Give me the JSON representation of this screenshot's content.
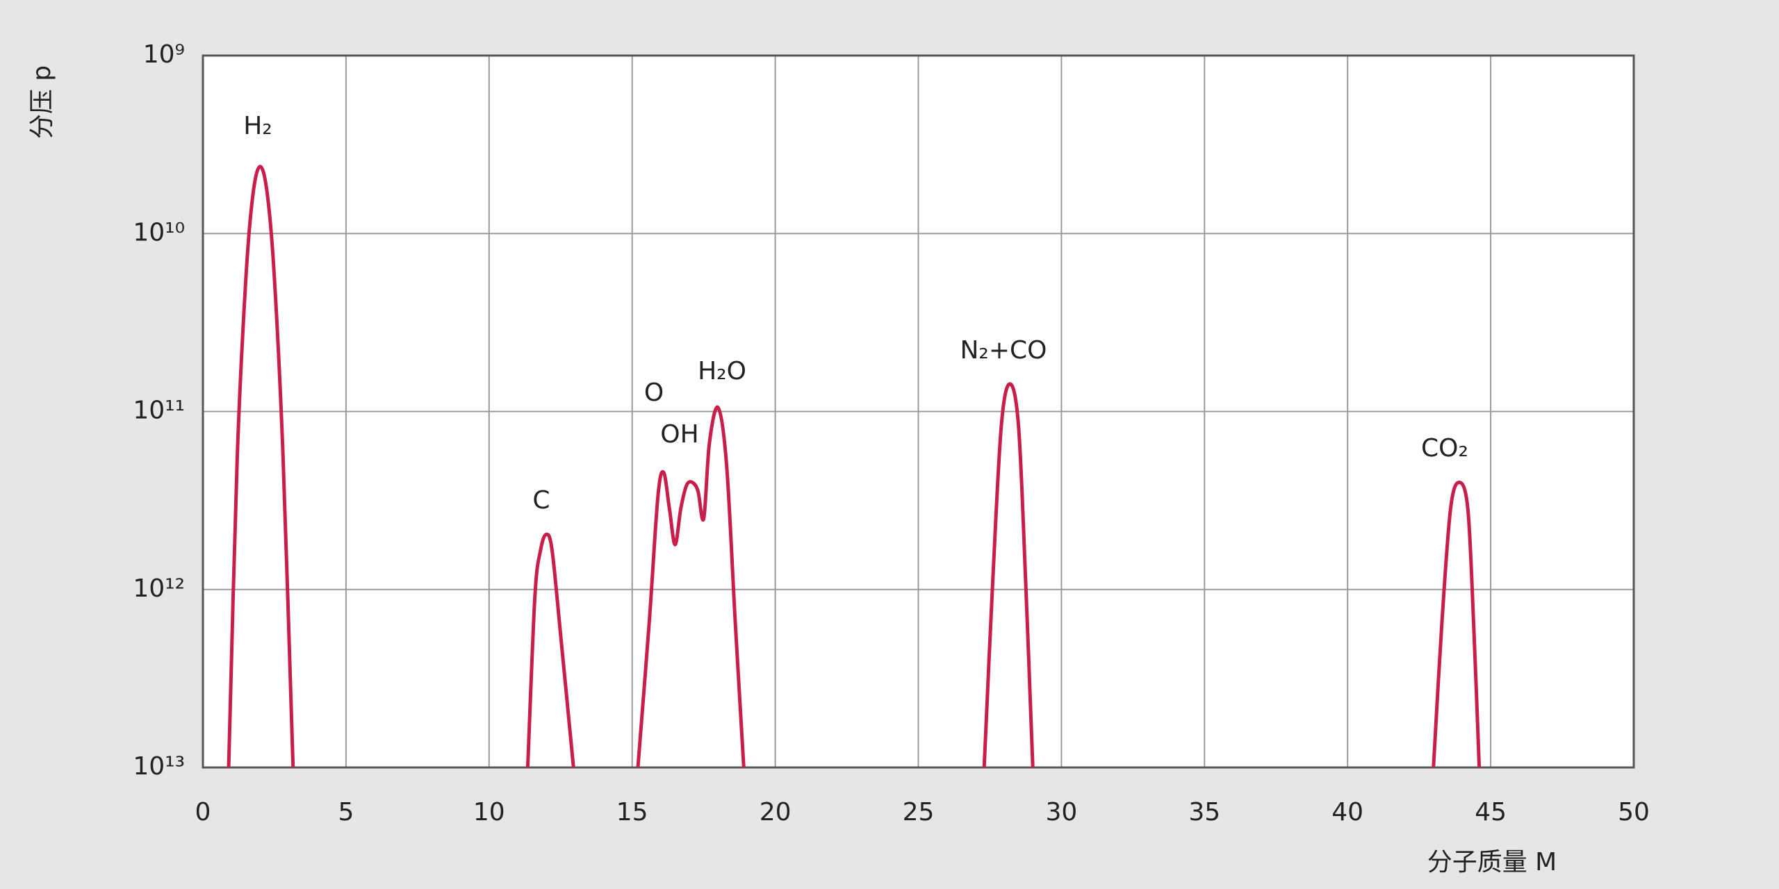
{
  "chart_data": {
    "type": "line",
    "x_label": "分子质量 M",
    "y_label": "分压 p",
    "color": "#c81e4c",
    "log_y": true,
    "grid": true,
    "xlim": [
      0,
      50
    ],
    "xticks": [
      0,
      5,
      10,
      15,
      20,
      25,
      30,
      35,
      40,
      45,
      50
    ],
    "ylim": [
      10000000000000.0,
      1000000000.0
    ],
    "yticks": [
      {
        "value": 10000000000000.0,
        "label": "10¹³"
      },
      {
        "value": 1000000000000.0,
        "label": "10¹²"
      },
      {
        "value": 100000000000.0,
        "label": "10¹¹"
      },
      {
        "value": 10000000000.0,
        "label": "10¹⁰"
      },
      {
        "value": 1000000000.0,
        "label": "10⁹"
      }
    ],
    "annotations": [
      "H₂",
      "C",
      "O",
      "OH",
      "H₂O",
      "N₂+CO",
      "CO₂"
    ],
    "x": [
      0.9,
      1.2,
      1.5,
      1.75,
      2.0,
      2.25,
      2.5,
      2.8,
      3.15,
      7,
      11.35,
      11.6,
      11.8,
      12.0,
      12.2,
      12.5,
      12.95,
      14,
      15.2,
      15.6,
      15.9,
      16.1,
      16.3,
      16.5,
      16.7,
      16.9,
      17.1,
      17.3,
      17.5,
      17.7,
      18.0,
      18.3,
      18.6,
      18.9,
      23,
      27.3,
      27.6,
      27.9,
      28.2,
      28.5,
      28.75,
      29.0,
      36,
      43.0,
      43.3,
      43.6,
      43.9,
      44.2,
      44.4,
      44.6
    ],
    "values": [
      10000000000000.0,
      180000000000.0,
      18000000000.0,
      6000000000.0,
      4200000000.0,
      6000000000.0,
      18000000000.0,
      180000000000.0,
      10000000000000.0,
      null,
      10000000000000.0,
      1100000000000.0,
      600000000000.0,
      490000000000.0,
      600000000000.0,
      1800000000000.0,
      10000000000000.0,
      null,
      10000000000000.0,
      1500000000000.0,
      300000000000.0,
      220000000000.0,
      350000000000.0,
      560000000000.0,
      350000000000.0,
      260000000000.0,
      250000000000.0,
      280000000000.0,
      400000000000.0,
      150000000000.0,
      95000000000.0,
      200000000000.0,
      1500000000000.0,
      10000000000000.0,
      null,
      10000000000000.0,
      900000000000.0,
      120000000000.0,
      70000000000.0,
      120000000000.0,
      900000000000.0,
      10000000000000.0,
      null,
      10000000000000.0,
      1500000000000.0,
      350000000000.0,
      250000000000.0,
      350000000000.0,
      1500000000000.0,
      10000000000000.0
    ]
  }
}
